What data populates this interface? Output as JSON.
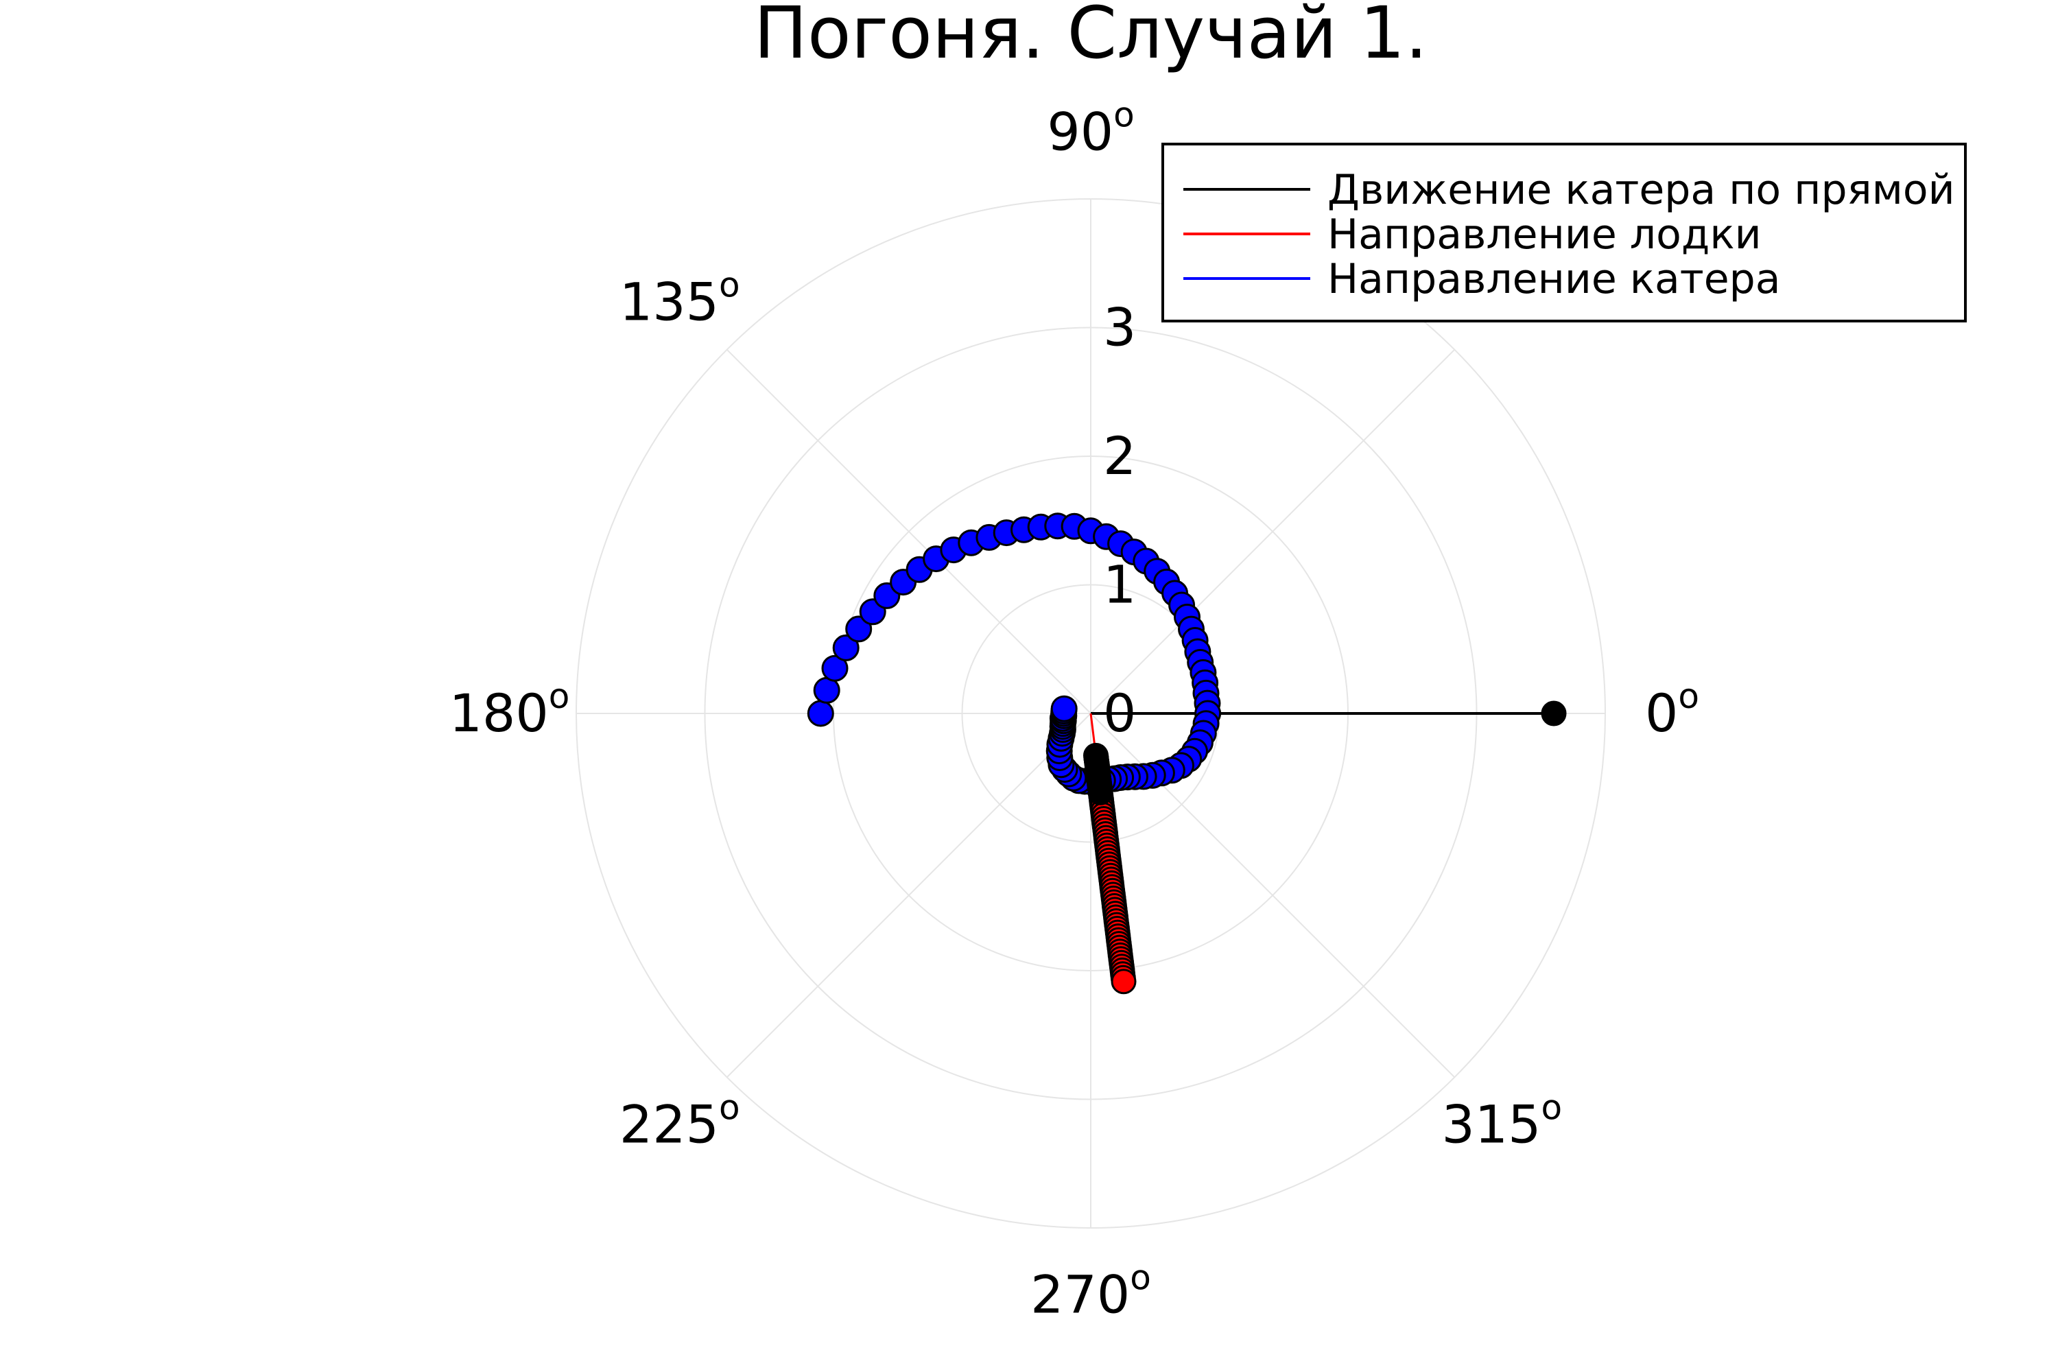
{
  "chart_data": {
    "type": "scatter",
    "coordinate_system": "polar",
    "title": "Погоня. Случай 1.",
    "angular_ticks": [
      "0",
      "45",
      "90",
      "135",
      "180",
      "225",
      "270",
      "315"
    ],
    "angular_tick_values": [
      0,
      45,
      90,
      135,
      180,
      225,
      270,
      315
    ],
    "degree_symbol": "o",
    "radial_ticks": [
      "0",
      "1",
      "2",
      "3"
    ],
    "radial_tick_values": [
      0,
      1,
      2,
      3
    ],
    "rlim": [
      0,
      4
    ],
    "grid": true,
    "legend_position": "top-right",
    "legend": [
      {
        "label": "Движение катера по прямой",
        "color": "#000000"
      },
      {
        "label": "Направление лодки",
        "color": "#ff0000"
      },
      {
        "label": "Направление катера",
        "color": "#0000ff"
      }
    ],
    "series": [
      {
        "name": "Движение катера по прямой",
        "color": "#000000",
        "marker": "line+point",
        "points": [
          [
            0,
            0
          ],
          [
            0,
            3.6
          ]
        ]
      },
      {
        "name": "Направление лодки",
        "color": "#ff0000",
        "marker": "line+points",
        "theta_deg": 277,
        "r_start": 0.0,
        "r_points_from": 0.35,
        "r_points_to": 2.1,
        "n_points": 60
      },
      {
        "name": "Направление катера",
        "color": "#0000ff",
        "marker": "line+points",
        "points": [
          [
            180,
            2.1
          ],
          [
            175,
            2.06
          ],
          [
            170,
            2.02
          ],
          [
            165,
            1.97
          ],
          [
            160,
            1.92
          ],
          [
            155,
            1.87
          ],
          [
            150,
            1.83
          ],
          [
            145,
            1.78
          ],
          [
            140,
            1.74
          ],
          [
            135,
            1.7
          ],
          [
            130,
            1.66
          ],
          [
            125,
            1.62
          ],
          [
            120,
            1.58
          ],
          [
            115,
            1.55
          ],
          [
            110,
            1.52
          ],
          [
            105,
            1.5
          ],
          [
            100,
            1.48
          ],
          [
            95,
            1.46
          ],
          [
            90,
            1.42
          ],
          [
            85,
            1.38
          ],
          [
            80,
            1.34
          ],
          [
            75,
            1.3
          ],
          [
            70,
            1.26
          ],
          [
            65,
            1.22
          ],
          [
            60,
            1.18
          ],
          [
            55,
            1.14
          ],
          [
            50,
            1.1
          ],
          [
            45,
            1.06
          ],
          [
            40,
            1.02
          ],
          [
            35,
            0.99
          ],
          [
            30,
            0.96
          ],
          [
            25,
            0.94
          ],
          [
            20,
            0.93
          ],
          [
            15,
            0.92
          ],
          [
            10,
            0.91
          ],
          [
            5,
            0.91
          ],
          [
            0,
            0.91
          ],
          [
            -5,
            0.9
          ],
          [
            -10,
            0.89
          ],
          [
            -15,
            0.88
          ],
          [
            -20,
            0.86
          ],
          [
            -25,
            0.84
          ],
          [
            -30,
            0.81
          ],
          [
            -35,
            0.77
          ],
          [
            -40,
            0.72
          ],
          [
            -45,
            0.68
          ],
          [
            -50,
            0.64
          ],
          [
            -55,
            0.6
          ],
          [
            -60,
            0.57
          ],
          [
            -65,
            0.55
          ],
          [
            -70,
            0.54
          ],
          [
            -75,
            0.53
          ],
          [
            -80,
            0.53
          ],
          [
            -85,
            0.53
          ],
          [
            -90,
            0.53
          ],
          [
            -95,
            0.53
          ],
          [
            -100,
            0.53
          ],
          [
            -105,
            0.52
          ],
          [
            -110,
            0.5
          ],
          [
            -115,
            0.48
          ],
          [
            -120,
            0.46
          ],
          [
            -125,
            0.42
          ],
          [
            -130,
            0.38
          ],
          [
            -135,
            0.34
          ],
          [
            -140,
            0.3
          ],
          [
            -145,
            0.27
          ],
          [
            -150,
            0.25
          ],
          [
            -155,
            0.24
          ],
          [
            -160,
            0.23
          ],
          [
            -165,
            0.22
          ],
          [
            -170,
            0.22
          ],
          [
            -175,
            0.21
          ],
          [
            180,
            0.21
          ],
          [
            175,
            0.21
          ],
          [
            170,
            0.21
          ]
        ]
      },
      {
        "name": "",
        "color": "#000000",
        "marker": "points",
        "theta_deg": 277,
        "r_from": 0.33,
        "r_to": 0.62,
        "n_points": 18
      }
    ]
  }
}
